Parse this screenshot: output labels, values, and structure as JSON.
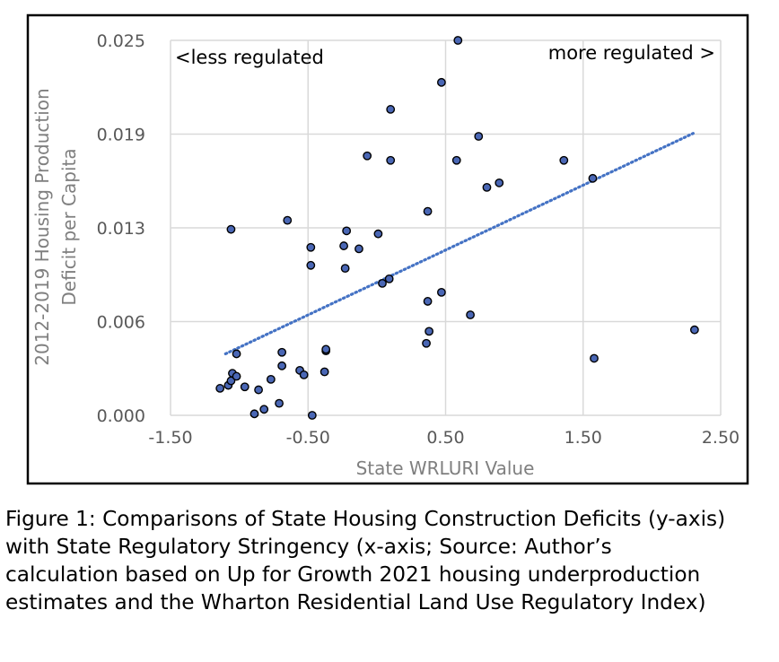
{
  "chart_data": {
    "type": "scatter",
    "xlabel": "State WRLURI Value",
    "ylabel": "2012-2019 Housing Production Deficit per Capita",
    "ylabel_lines": [
      "2012-2019 Housing Production",
      "Deficit per Capita"
    ],
    "xlim": [
      -1.5,
      2.5
    ],
    "ylim": [
      0.0,
      0.025
    ],
    "x_ticks": [
      -1.5,
      -0.5,
      0.5,
      1.5,
      2.5
    ],
    "x_tick_labels": [
      "-1.50",
      "-0.50",
      "0.50",
      "1.50",
      "2.50"
    ],
    "y_ticks": [
      0.0,
      0.00625,
      0.0125,
      0.01875,
      0.025
    ],
    "y_tick_labels": [
      "0.000",
      "0.006",
      "0.013",
      "0.019",
      "0.025"
    ],
    "grid": true,
    "annotations": {
      "left": "<less regulated",
      "right": "more regulated >"
    },
    "series": [
      {
        "name": "States",
        "color": "#4a67b5",
        "points": [
          [
            -1.14,
            0.0018
          ],
          [
            -1.08,
            0.002
          ],
          [
            -1.06,
            0.0023
          ],
          [
            -1.05,
            0.0028
          ],
          [
            -1.02,
            0.0026
          ],
          [
            -0.96,
            0.0019
          ],
          [
            -0.89,
            0.0001
          ],
          [
            -0.86,
            0.0017
          ],
          [
            -0.82,
            0.0004
          ],
          [
            -0.77,
            0.0024
          ],
          [
            -0.71,
            0.0008
          ],
          [
            -0.69,
            0.0033
          ],
          [
            -0.69,
            0.0042
          ],
          [
            -0.56,
            0.003
          ],
          [
            -0.53,
            0.0027
          ],
          [
            -0.47,
            0.0
          ],
          [
            -0.48,
            0.01
          ],
          [
            -0.48,
            0.0112
          ],
          [
            -0.37,
            0.0043
          ],
          [
            -0.37,
            0.0044
          ],
          [
            -0.38,
            0.0029
          ],
          [
            -0.24,
            0.0113
          ],
          [
            -0.23,
            0.0098
          ],
          [
            -0.22,
            0.0123
          ],
          [
            -0.13,
            0.0111
          ],
          [
            -0.07,
            0.0173
          ],
          [
            0.01,
            0.0121
          ],
          [
            0.04,
            0.0088
          ],
          [
            0.09,
            0.0091
          ],
          [
            0.1,
            0.017
          ],
          [
            0.1,
            0.0204
          ],
          [
            -0.65,
            0.013
          ],
          [
            -1.06,
            0.0124
          ],
          [
            -1.02,
            0.0041
          ],
          [
            0.36,
            0.0048
          ],
          [
            0.37,
            0.0136
          ],
          [
            0.37,
            0.0076
          ],
          [
            0.38,
            0.0056
          ],
          [
            0.47,
            0.0082
          ],
          [
            0.47,
            0.0222
          ],
          [
            0.58,
            0.017
          ],
          [
            0.59,
            0.025
          ],
          [
            0.68,
            0.0067
          ],
          [
            0.74,
            0.0186
          ],
          [
            0.8,
            0.0152
          ],
          [
            0.89,
            0.0155
          ],
          [
            1.36,
            0.017
          ],
          [
            1.57,
            0.0158
          ],
          [
            1.58,
            0.0038
          ],
          [
            2.31,
            0.0057
          ]
        ]
      }
    ],
    "trendline": {
      "type": "linear",
      "color": "#4472c4",
      "x": [
        -1.1,
        2.3
      ],
      "y": [
        0.0041,
        0.0188
      ]
    }
  },
  "caption": {
    "lines": [
      "Figure 1: Comparisons of State Housing Construction Deficits (y-axis)",
      "with State Regulatory Stringency (x-axis; Source: Author’s",
      "calculation based on Up for Growth 2021 housing underproduction",
      "estimates and the Wharton Residential Land Use Regulatory Index)"
    ]
  }
}
